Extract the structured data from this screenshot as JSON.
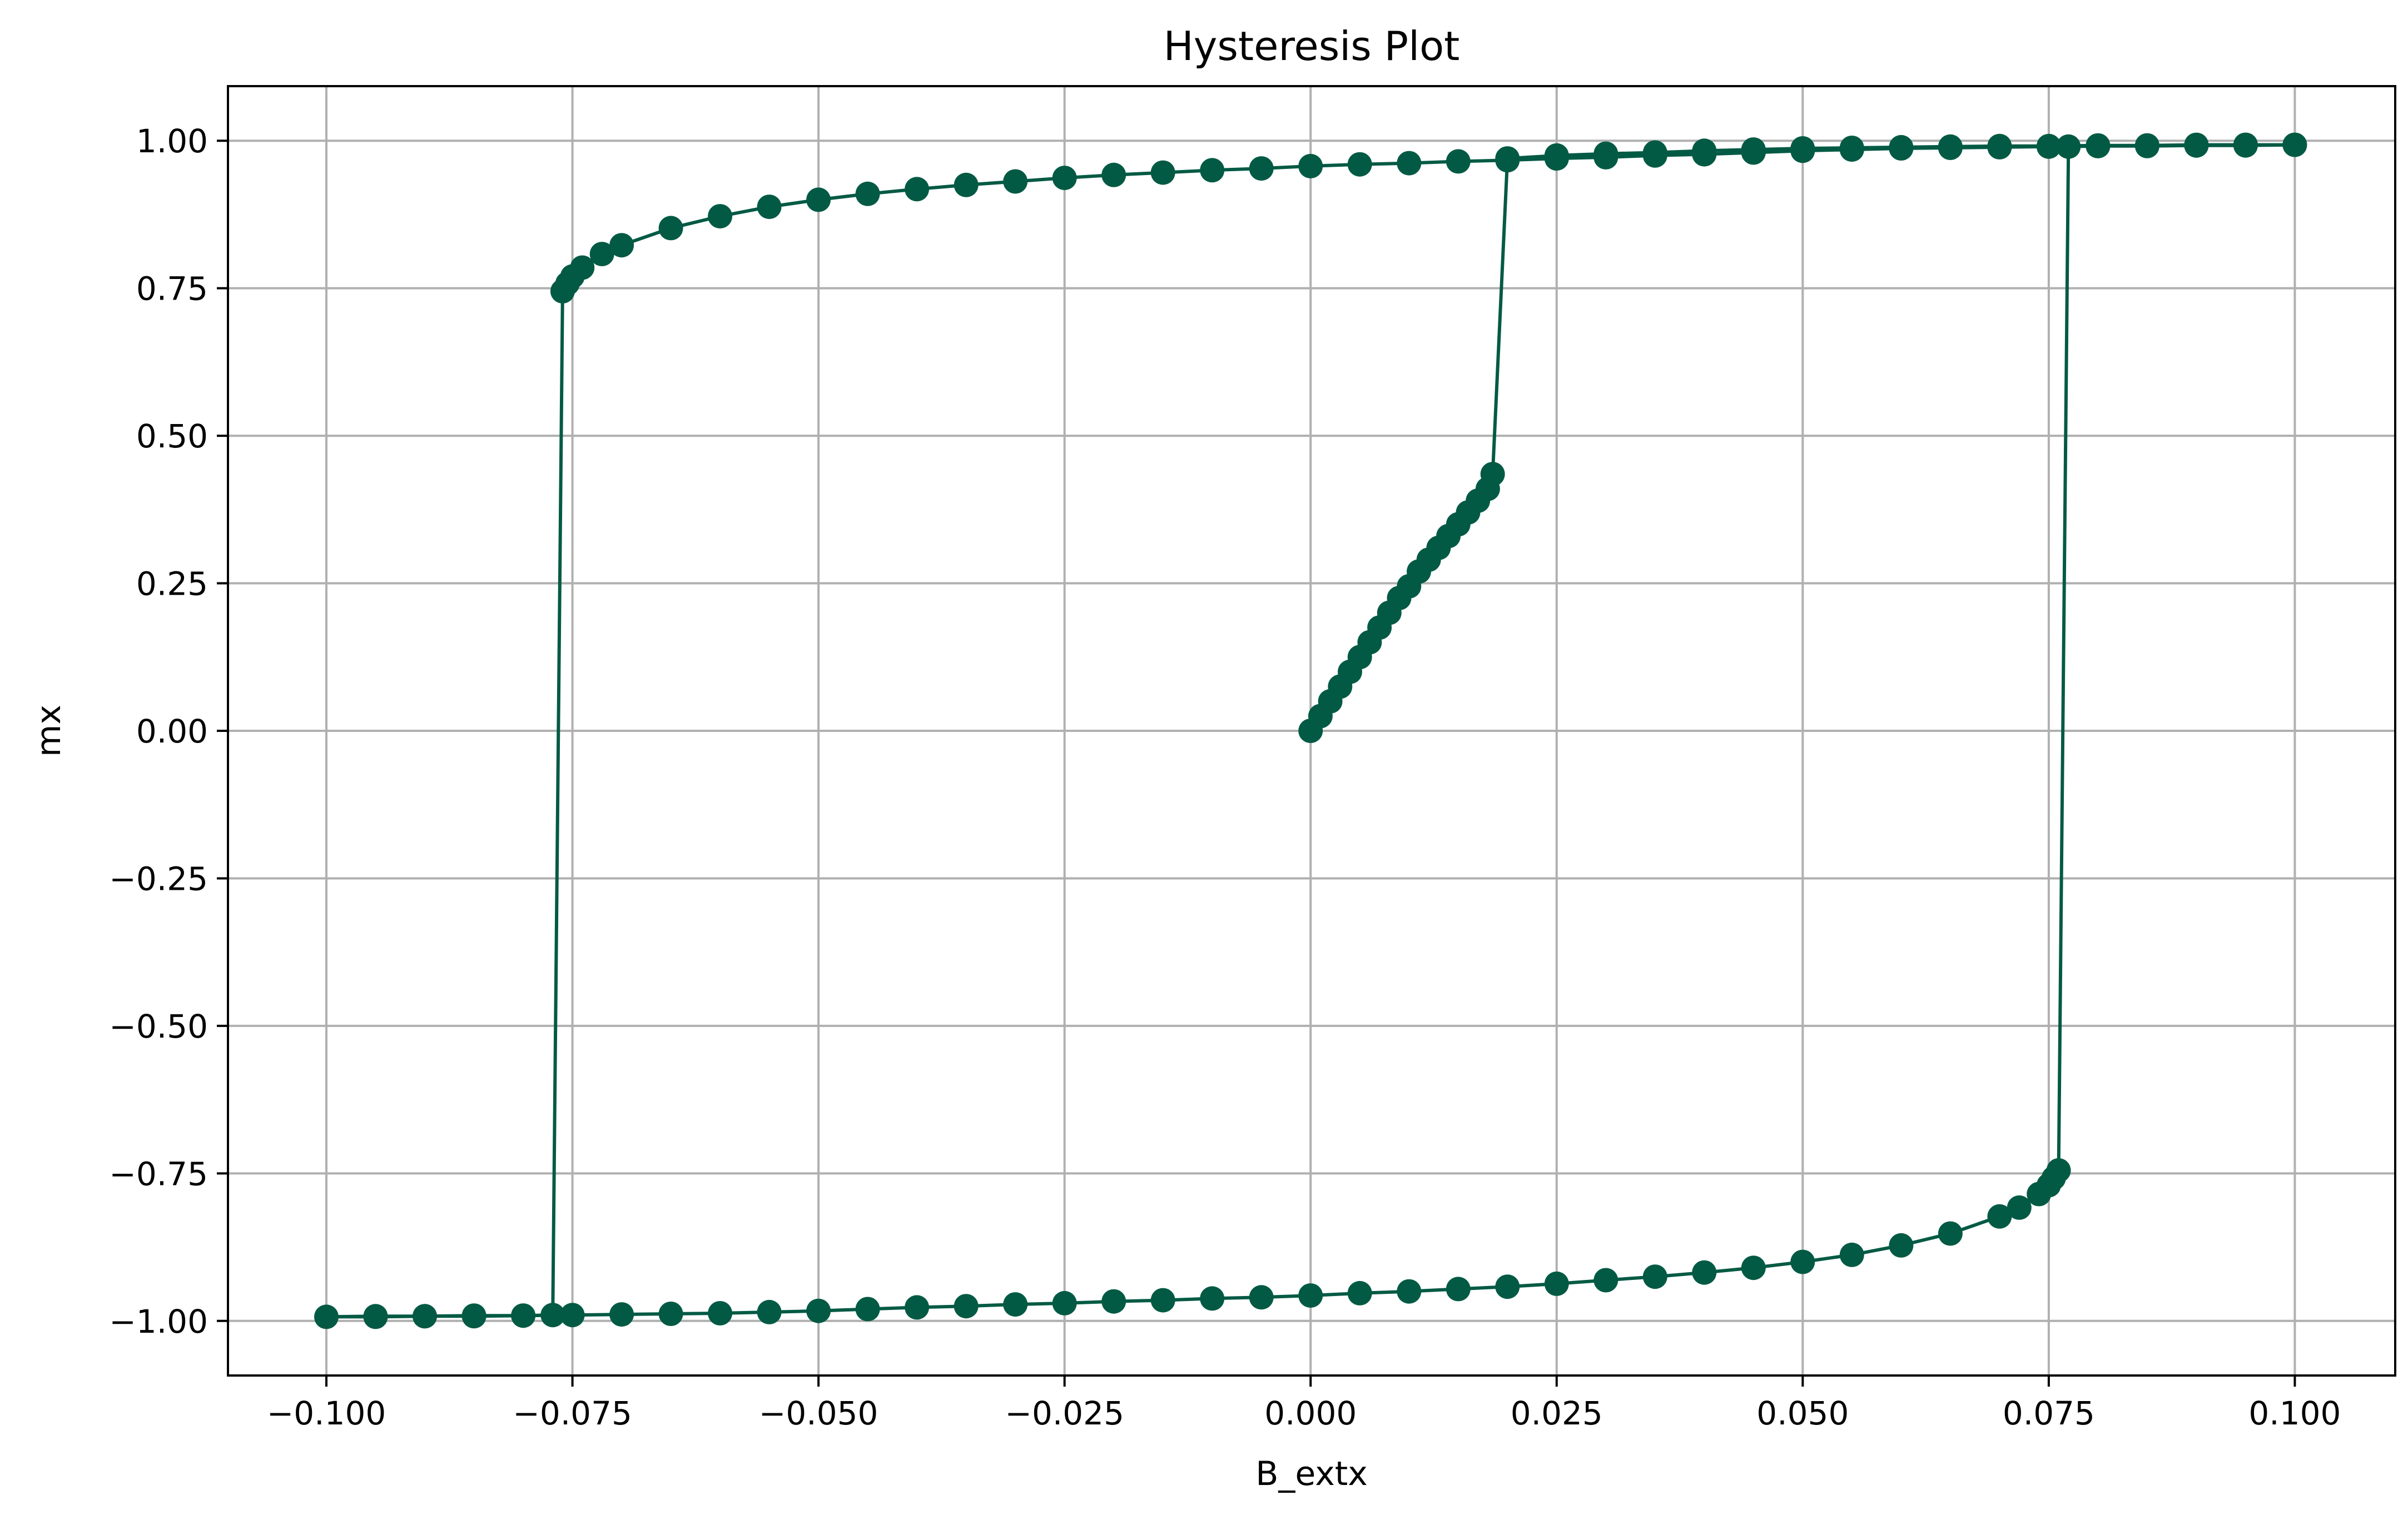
{
  "chart_data": {
    "type": "line",
    "title": "Hysteresis Plot",
    "xlabel": "B_extx",
    "ylabel": "mx",
    "xlim": [
      -0.11,
      0.1102
    ],
    "ylim": [
      -1.0925,
      1.0925
    ],
    "grid": true,
    "color": "#035a44",
    "x_ticks": [
      -0.1,
      -0.075,
      -0.05,
      -0.025,
      0.0,
      0.025,
      0.05,
      0.075,
      0.1
    ],
    "x_tick_labels": [
      "−0.100",
      "−0.075",
      "−0.050",
      "−0.025",
      "0.000",
      "0.025",
      "0.050",
      "0.075",
      "0.100"
    ],
    "y_ticks": [
      1.0,
      0.75,
      0.5,
      0.25,
      0.0,
      -0.25,
      -0.5,
      -0.75,
      -1.0
    ],
    "y_tick_labels": [
      "1.00",
      "0.75",
      "0.50",
      "0.25",
      "0.00",
      "−0.25",
      "−0.50",
      "−0.75",
      "−1.00"
    ],
    "series": [
      {
        "marker": "circle",
        "x": [
          0.0,
          0.001,
          0.002,
          0.003,
          0.004,
          0.005,
          0.006,
          0.007,
          0.008,
          0.009,
          0.01,
          0.011,
          0.012,
          0.013,
          0.014,
          0.015,
          0.016,
          0.017,
          0.018,
          0.0185,
          0.02,
          0.025,
          0.03,
          0.035,
          0.04,
          0.045,
          0.05,
          0.055,
          0.06,
          0.065,
          0.07,
          0.075,
          0.08,
          0.085,
          0.09,
          0.095,
          0.1,
          0.095,
          0.09,
          0.085,
          0.08,
          0.075,
          0.07,
          0.065,
          0.06,
          0.055,
          0.05,
          0.045,
          0.04,
          0.035,
          0.03,
          0.025,
          0.02,
          0.015,
          0.01,
          0.005,
          0.0,
          -0.005,
          -0.01,
          -0.015,
          -0.02,
          -0.025,
          -0.03,
          -0.035,
          -0.04,
          -0.045,
          -0.05,
          -0.055,
          -0.06,
          -0.065,
          -0.07,
          -0.072,
          -0.074,
          -0.075,
          -0.0755,
          -0.076,
          -0.077,
          -0.08,
          -0.085,
          -0.09,
          -0.095,
          -0.1,
          -0.095,
          -0.09,
          -0.085,
          -0.08,
          -0.075,
          -0.07,
          -0.065,
          -0.06,
          -0.055,
          -0.05,
          -0.045,
          -0.04,
          -0.035,
          -0.03,
          -0.025,
          -0.02,
          -0.015,
          -0.01,
          -0.005,
          0.0,
          0.005,
          0.01,
          0.015,
          0.02,
          0.025,
          0.03,
          0.035,
          0.04,
          0.045,
          0.05,
          0.055,
          0.06,
          0.065,
          0.07,
          0.072,
          0.074,
          0.075,
          0.0755,
          0.076,
          0.077,
          0.08,
          0.085,
          0.09,
          0.095,
          0.1
        ],
        "y": [
          0.0,
          0.025,
          0.05,
          0.075,
          0.1,
          0.125,
          0.15,
          0.175,
          0.2,
          0.225,
          0.245,
          0.27,
          0.29,
          0.31,
          0.33,
          0.35,
          0.37,
          0.39,
          0.41,
          0.435,
          0.97,
          0.975,
          0.978,
          0.98,
          0.983,
          0.985,
          0.987,
          0.988,
          0.989,
          0.99,
          0.991,
          0.991,
          0.992,
          0.992,
          0.993,
          0.993,
          0.993,
          0.993,
          0.992,
          0.992,
          0.991,
          0.99,
          0.989,
          0.988,
          0.987,
          0.985,
          0.983,
          0.98,
          0.977,
          0.975,
          0.972,
          0.97,
          0.967,
          0.965,
          0.962,
          0.96,
          0.957,
          0.953,
          0.95,
          0.946,
          0.942,
          0.937,
          0.931,
          0.925,
          0.918,
          0.91,
          0.9,
          0.888,
          0.872,
          0.852,
          0.823,
          0.808,
          0.785,
          0.77,
          0.758,
          0.745,
          -0.99,
          -0.991,
          -0.991,
          -0.992,
          -0.992,
          -0.993,
          -0.993,
          -0.992,
          -0.992,
          -0.991,
          -0.99,
          -0.989,
          -0.988,
          -0.987,
          -0.985,
          -0.983,
          -0.98,
          -0.977,
          -0.975,
          -0.972,
          -0.97,
          -0.967,
          -0.965,
          -0.962,
          -0.96,
          -0.957,
          -0.953,
          -0.95,
          -0.946,
          -0.942,
          -0.937,
          -0.931,
          -0.925,
          -0.918,
          -0.91,
          -0.9,
          -0.888,
          -0.872,
          -0.852,
          -0.823,
          -0.808,
          -0.785,
          -0.77,
          -0.758,
          -0.745,
          0.99,
          0.991,
          0.991,
          0.992,
          0.992,
          0.993
        ]
      }
    ]
  }
}
